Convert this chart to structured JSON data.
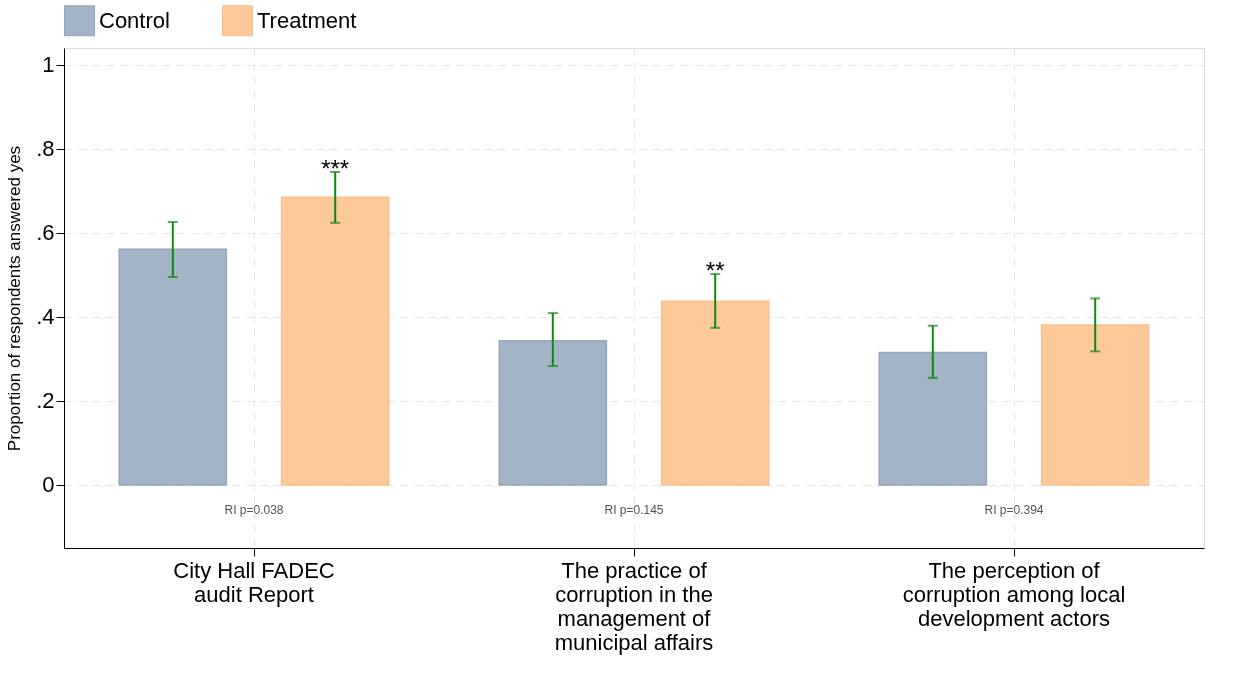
{
  "chart_data": {
    "type": "bar",
    "categories": [
      "City Hall FADEC\naudit Report",
      "The practice of\ncorruption in the\nmanagement of\nmunicipal affairs",
      "The perception of\ncorruption among local\ndevelopment actors"
    ],
    "series": [
      {
        "name": "Control",
        "color": "#a3b4c6",
        "values": [
          0.561,
          0.343,
          0.315
        ],
        "errors": [
          [
            0.495,
            0.626
          ],
          [
            0.283,
            0.409
          ],
          [
            0.255,
            0.379
          ]
        ]
      },
      {
        "name": "Treatment",
        "color": "#fdc998",
        "values": [
          0.685,
          0.437,
          0.381
        ],
        "errors": [
          [
            0.624,
            0.745
          ],
          [
            0.374,
            0.502
          ],
          [
            0.318,
            0.444
          ]
        ]
      }
    ],
    "ylabel": "Proportion of respondents answered yes",
    "ylim": [
      -0.15,
      1.04
    ],
    "yticks": [
      0,
      {
        "value": 0.2,
        "label": ".2"
      },
      {
        "value": 0.4,
        "label": ".4"
      },
      {
        "value": 0.6,
        "label": ".6"
      },
      {
        "value": 0.8,
        "label": ".8"
      },
      1
    ],
    "annotations": [
      "***",
      "**",
      "RI p=0.038",
      "RI p=0.145",
      "RI p=0.394"
    ],
    "grid": true,
    "legend": "top left"
  }
}
